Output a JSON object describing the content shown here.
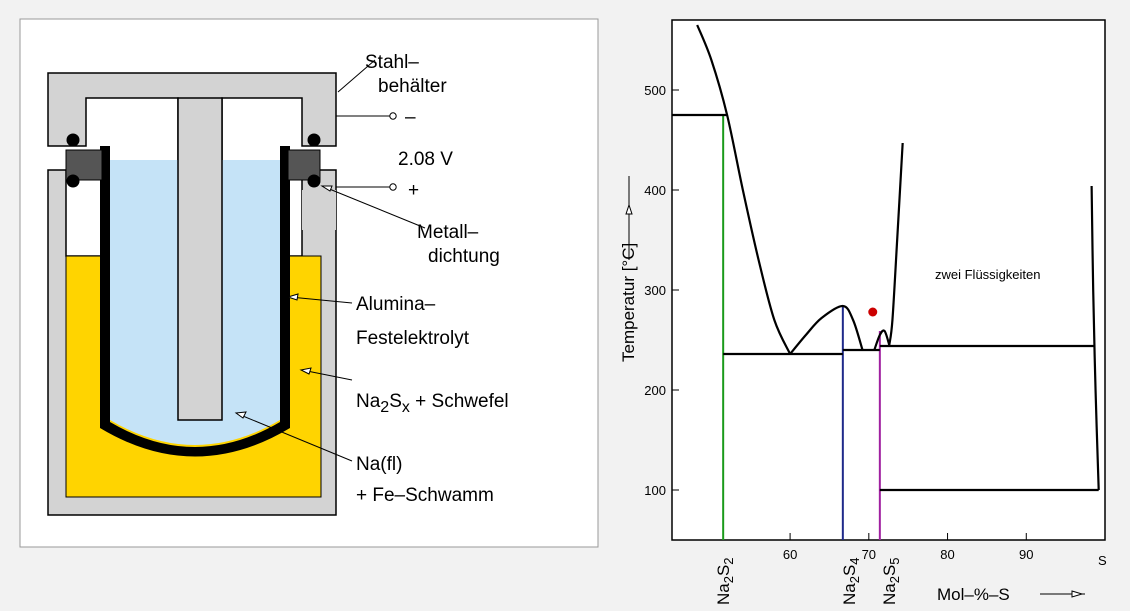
{
  "cell": {
    "labels": {
      "steel_1": "Stahl–",
      "steel_2": "behälter",
      "minus": "–",
      "voltage": "2.08 V",
      "plus": "+",
      "seal_1": "Metall–",
      "seal_2": "dichtung",
      "alumina_1": "Alumina–",
      "alumina_2": "Festelektrolyt",
      "na2sx_a": "Na",
      "na2sx_b": "2",
      "na2sx_c": "S",
      "na2sx_d": "x",
      "na2sx_e": " + Schwefel",
      "na_fl": "Na(fl)",
      "fe": "+ Fe–Schwamm"
    },
    "colors": {
      "steel": "#d3d3d3",
      "sodium": "#c5e3f7",
      "sulfur": "#ffd400",
      "electrolyte": "#000000",
      "seal_block": "#555555"
    }
  },
  "phase": {
    "axis": {
      "ylabel": "Temperatur [°C]",
      "xlabel": "Mol–%–S",
      "x_ticks": [
        "60",
        "70",
        "80",
        "90"
      ],
      "y_ticks": [
        "100",
        "200",
        "300",
        "400",
        "500"
      ],
      "x_end_label": "S"
    },
    "annotation": "zwei Flüssigkeiten",
    "compounds": [
      {
        "id": "na2s2",
        "main": "Na",
        "sub1": "2",
        "mid": "S",
        "sub2": "2",
        "color": "#1a9a1a"
      },
      {
        "id": "na2s4",
        "main": "Na",
        "sub1": "2",
        "mid": "S",
        "sub2": "4",
        "color": "#1f2a8a"
      },
      {
        "id": "na2s5",
        "main": "Na",
        "sub1": "2",
        "mid": "S",
        "sub2": "5",
        "color": "#a020a0"
      }
    ],
    "chart_data": {
      "type": "line",
      "xlabel": "Mol–%–S",
      "ylabel": "Temperatur [°C]",
      "xlim": [
        45,
        100
      ],
      "ylim": [
        50,
        570
      ],
      "x_ticks": [
        60,
        70,
        80,
        90
      ],
      "y_ticks": [
        100,
        200,
        300,
        400,
        500
      ],
      "liquidus_na2s2": {
        "x": [
          48.2,
          50,
          52,
          54,
          56,
          58,
          60
        ],
        "y": [
          565,
          530,
          475,
          400,
          330,
          270,
          236
        ]
      },
      "dome_na2s4": {
        "x": [
          60,
          62,
          64,
          66.7,
          68,
          69.2
        ],
        "y": [
          236,
          255,
          272,
          284,
          270,
          240
        ]
      },
      "small_hump_na2s5": {
        "x": [
          70.7,
          71.4,
          72,
          72.6
        ],
        "y": [
          240,
          255,
          259,
          245
        ]
      },
      "liquidus_right": {
        "x": [
          72.6,
          73,
          73.6,
          74.3
        ],
        "y": [
          245,
          270,
          350,
          447
        ]
      },
      "liquidus_s": {
        "x": [
          98.3,
          98.5,
          98.8,
          99.2
        ],
        "y": [
          404,
          300,
          200,
          100
        ]
      },
      "eutectic_60": {
        "x": [
          51.5,
          66.7
        ],
        "y": [
          236,
          236
        ]
      },
      "eutectic_70": {
        "x": [
          66.7,
          71.4
        ],
        "y": [
          240,
          240
        ]
      },
      "monotectic": {
        "x": [
          71.4,
          98.6
        ],
        "y": [
          244,
          244
        ]
      },
      "solid_s": {
        "x": [
          71.4,
          99.2
        ],
        "y": [
          100,
          100
        ]
      },
      "peritectic_na2s2": {
        "x": [
          45,
          52
        ],
        "y": [
          475,
          475
        ]
      },
      "point": {
        "x": 70.5,
        "y": 278,
        "color": "#cc0000"
      },
      "compound_lines": [
        {
          "x": 51.5,
          "y_top": 475,
          "color": "#1a9a1a"
        },
        {
          "x": 66.7,
          "y_top": 284,
          "color": "#1f2a8a"
        },
        {
          "x": 71.4,
          "y_top": 259,
          "color": "#a020a0"
        }
      ]
    }
  }
}
